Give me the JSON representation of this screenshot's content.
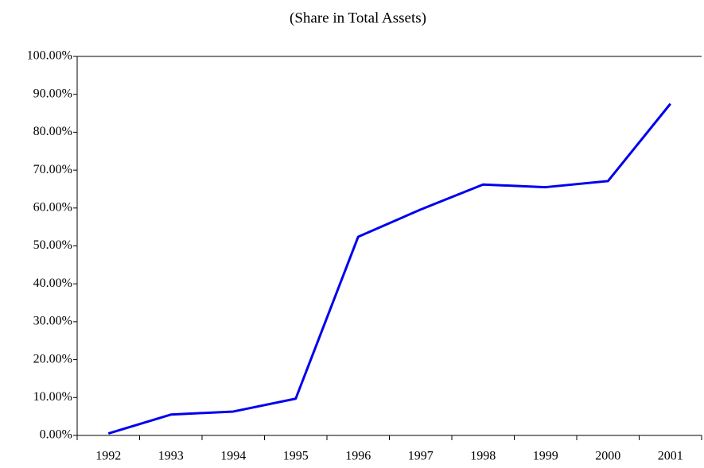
{
  "chart_data": {
    "type": "line",
    "title": "(Share in Total Assets)",
    "categories": [
      "1992",
      "1993",
      "1994",
      "1995",
      "1996",
      "1997",
      "1998",
      "1999",
      "2000",
      "2001"
    ],
    "series": [
      {
        "color": "#0000ee",
        "values": [
          0.5,
          5.5,
          6.3,
          9.7,
          52.4,
          59.6,
          66.2,
          65.5,
          67.1,
          87.5
        ]
      }
    ],
    "ylim": [
      0,
      100
    ],
    "yticks": [
      {
        "value": 0,
        "label": "0.00%"
      },
      {
        "value": 10,
        "label": "10.00%"
      },
      {
        "value": 20,
        "label": "20.00%"
      },
      {
        "value": 30,
        "label": "30.00%"
      },
      {
        "value": 40,
        "label": "40.00%"
      },
      {
        "value": 50,
        "label": "50.00%"
      },
      {
        "value": 60,
        "label": "60.00%"
      },
      {
        "value": 70,
        "label": "70.00%"
      },
      {
        "value": 80,
        "label": "80.00%"
      },
      {
        "value": 90,
        "label": "90.00%"
      },
      {
        "value": 100,
        "label": "100.00%"
      }
    ],
    "grid": false
  }
}
